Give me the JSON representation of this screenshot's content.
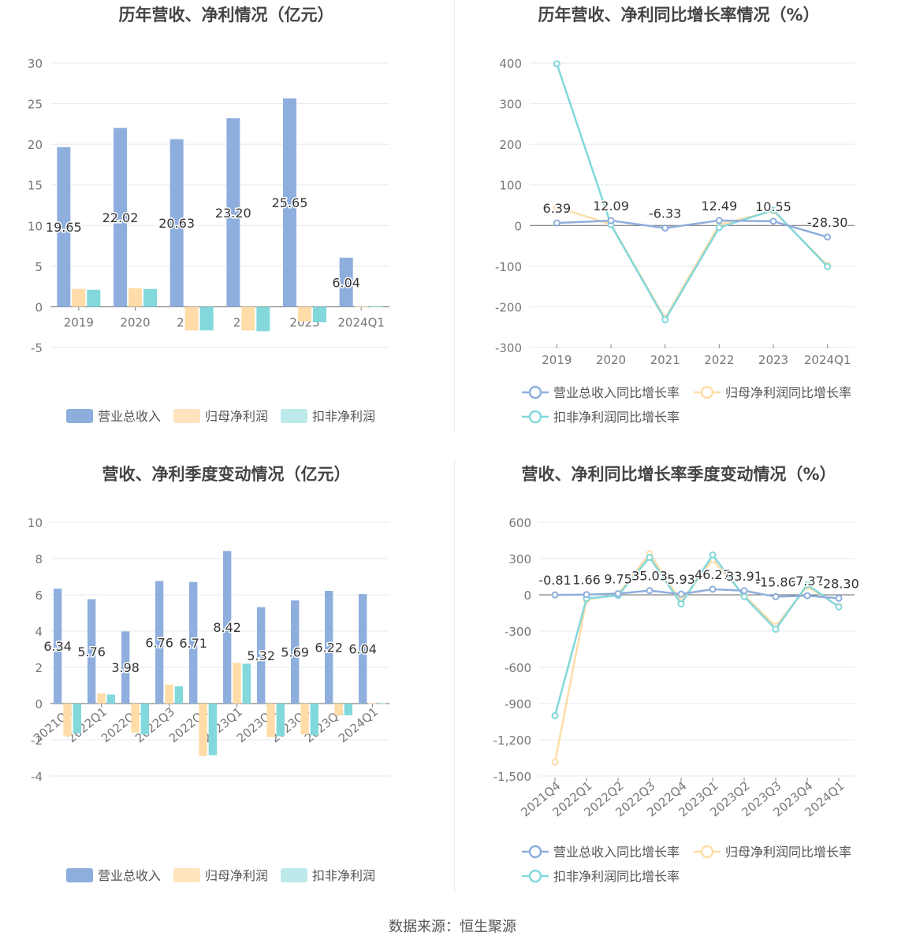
{
  "source_text": "数据来源：恒生聚源",
  "colors": {
    "revenue": "#8eaedd",
    "net_profit": "#ffdca8",
    "deducted_profit": "#82d8db"
  },
  "chart_data": [
    {
      "type": "bar",
      "title": "历年营收、净利情况（亿元）",
      "categories": [
        "2019",
        "2020",
        "2021",
        "2022",
        "2023",
        "2024Q1"
      ],
      "ylim": [
        -5,
        30
      ],
      "yticks": [
        -5,
        0,
        5,
        10,
        15,
        20,
        25,
        30
      ],
      "series": [
        {
          "name": "营业总收入",
          "values": [
            19.65,
            22.02,
            20.63,
            23.2,
            25.65,
            6.04
          ],
          "labels": [
            "19.65",
            "22.02",
            "20.63",
            "23.20",
            "25.65",
            "6.04"
          ]
        },
        {
          "name": "归母净利润",
          "values": [
            2.2,
            2.3,
            -2.9,
            -2.9,
            -1.8,
            0.05
          ]
        },
        {
          "name": "扣非净利润",
          "values": [
            2.1,
            2.2,
            -2.9,
            -3.0,
            -1.9,
            0.05
          ]
        }
      ],
      "legend_position": "bottom",
      "grid": true
    },
    {
      "type": "line",
      "title": "历年营收、净利同比增长率情况（%）",
      "categories": [
        "2019",
        "2020",
        "2021",
        "2022",
        "2023",
        "2024Q1"
      ],
      "ylim": [
        -300,
        400
      ],
      "yticks": [
        -300,
        -200,
        -100,
        0,
        100,
        200,
        300,
        400
      ],
      "series": [
        {
          "name": "营业总收入同比增长率",
          "values": [
            6.39,
            12.09,
            -6.33,
            12.49,
            10.55,
            -28.3
          ],
          "labels": [
            "6.39",
            "12.09",
            "-6.33",
            "12.49",
            "10.55",
            "-28.30"
          ]
        },
        {
          "name": "归母净利润同比增长率",
          "values": [
            45,
            3,
            -228,
            2,
            36,
            -98
          ]
        },
        {
          "name": "扣非净利润同比增长率",
          "values": [
            398,
            2,
            -232,
            -5,
            38,
            -101
          ]
        }
      ],
      "legend_position": "bottom",
      "grid": true
    },
    {
      "type": "bar",
      "title": "营收、净利季度变动情况（亿元）",
      "categories": [
        "2021Q4",
        "2022Q1",
        "2022Q2",
        "2022Q3",
        "2022Q4",
        "2023Q1",
        "2023Q2",
        "2023Q3",
        "2023Q4",
        "2024Q1"
      ],
      "ylim": [
        -4,
        10
      ],
      "yticks": [
        -4,
        -2,
        0,
        2,
        4,
        6,
        8,
        10
      ],
      "series": [
        {
          "name": "营业总收入",
          "values": [
            6.34,
            5.76,
            3.98,
            6.76,
            6.71,
            8.42,
            5.32,
            5.69,
            6.22,
            6.04
          ],
          "labels": [
            "6.34",
            "5.76",
            "3.98",
            "6.76",
            "6.71",
            "8.42",
            "5.32",
            "5.69",
            "6.22",
            "6.04"
          ]
        },
        {
          "name": "归母净利润",
          "values": [
            -1.8,
            0.55,
            -1.6,
            1.05,
            -2.9,
            2.25,
            -1.85,
            -1.7,
            -0.65,
            0.02
          ]
        },
        {
          "name": "扣非净利润",
          "values": [
            -1.65,
            0.5,
            -1.7,
            0.95,
            -2.85,
            2.2,
            -1.8,
            -1.75,
            -0.65,
            0.02
          ]
        }
      ],
      "legend_position": "bottom",
      "grid": true
    },
    {
      "type": "line",
      "title": "营收、净利同比增长率季度变动情况（%）",
      "categories": [
        "2021Q4",
        "2022Q1",
        "2022Q2",
        "2022Q3",
        "2022Q4",
        "2023Q1",
        "2023Q2",
        "2023Q3",
        "2023Q4",
        "2024Q1"
      ],
      "ylim": [
        -1500,
        600
      ],
      "yticks": [
        -1500,
        -1200,
        -900,
        -600,
        -300,
        0,
        300,
        600
      ],
      "series": [
        {
          "name": "营业总收入同比增长率",
          "values": [
            -0.81,
            1.66,
            9.75,
            35.03,
            5.93,
            46.27,
            33.91,
            -15.86,
            -7.37,
            -28.3
          ],
          "labels": [
            "-0.81",
            "1.66",
            "9.75",
            "35.03",
            "5.93",
            "46.27",
            "33.91",
            "-15.86",
            "-7.37",
            "-28.30"
          ]
        },
        {
          "name": "归母净利润同比增长率",
          "values": [
            -1385,
            -40,
            5,
            340,
            -55,
            290,
            -5,
            -260,
            70,
            -95
          ]
        },
        {
          "name": "扣非净利润同比增长率",
          "values": [
            -1000,
            -30,
            -5,
            310,
            -75,
            330,
            -15,
            -285,
            85,
            -100
          ]
        }
      ],
      "legend_position": "bottom",
      "grid": true
    }
  ]
}
